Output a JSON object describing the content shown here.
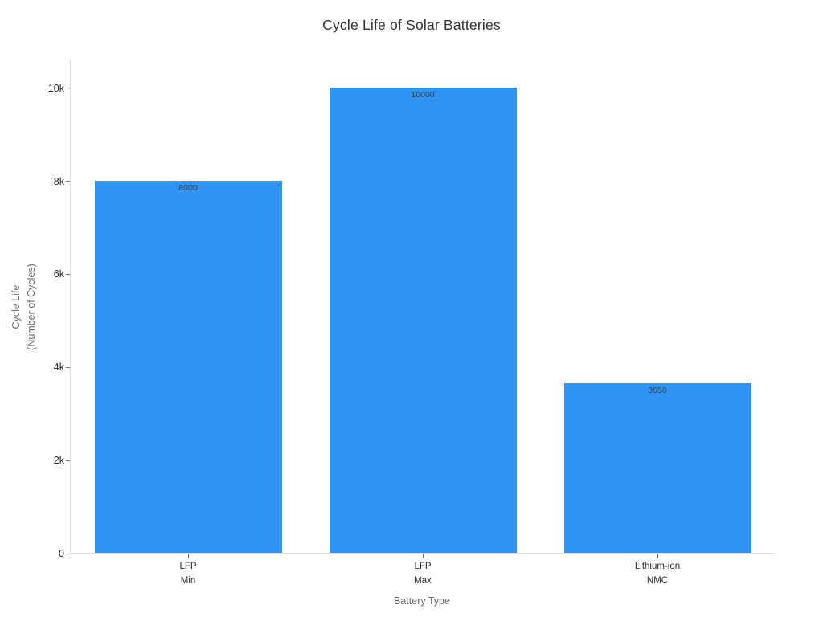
{
  "chart_data": {
    "type": "bar",
    "title": "Cycle Life of Solar Batteries",
    "xlabel": "Battery Type",
    "ylabel_lines": [
      "Cycle Life",
      "(Number of Cycles)"
    ],
    "categories": [
      [
        "LFP",
        "Min"
      ],
      [
        "LFP",
        "Max"
      ],
      [
        "Lithium-ion",
        "NMC"
      ]
    ],
    "values": [
      8000,
      10000,
      3650
    ],
    "value_labels": [
      "8000",
      "10000",
      "3650"
    ],
    "ylim": [
      0,
      10600
    ],
    "yticks": {
      "values": [
        0,
        2000,
        4000,
        6000,
        8000,
        10000
      ],
      "labels": [
        "0",
        "2k",
        "4k",
        "6k",
        "8k",
        "10k"
      ]
    },
    "grid": false,
    "legend": "none",
    "colors": {
      "bar": "#2F94F6",
      "axis_line": "#dcdcdc",
      "tick_mark": "#6b6b6b",
      "tick_label": "#2b2b2b",
      "axis_title": "#6a6a6a",
      "title": "#323232",
      "value_label": "#36414b"
    }
  }
}
